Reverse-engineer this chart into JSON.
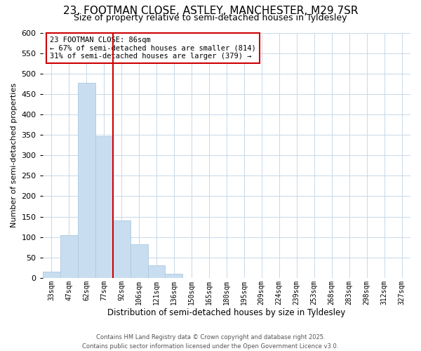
{
  "title": "23, FOOTMAN CLOSE, ASTLEY, MANCHESTER, M29 7SR",
  "subtitle": "Size of property relative to semi-detached houses in Tyldesley",
  "xlabel": "Distribution of semi-detached houses by size in Tyldesley",
  "ylabel": "Number of semi-detached properties",
  "categories": [
    "33sqm",
    "47sqm",
    "62sqm",
    "77sqm",
    "92sqm",
    "106sqm",
    "121sqm",
    "136sqm",
    "150sqm",
    "165sqm",
    "180sqm",
    "195sqm",
    "209sqm",
    "224sqm",
    "239sqm",
    "253sqm",
    "268sqm",
    "283sqm",
    "298sqm",
    "312sqm",
    "327sqm"
  ],
  "values": [
    15,
    105,
    478,
    346,
    140,
    83,
    30,
    10,
    0,
    0,
    0,
    0,
    0,
    0,
    0,
    0,
    0,
    0,
    0,
    0,
    0
  ],
  "bar_color": "#c8ddf0",
  "bar_edge_color": "#adc8e0",
  "vline_x": 3.5,
  "vline_color": "#cc0000",
  "annotation_title": "23 FOOTMAN CLOSE: 86sqm",
  "annotation_line1": "← 67% of semi-detached houses are smaller (814)",
  "annotation_line2": "31% of semi-detached houses are larger (379) →",
  "annotation_box_color": "#ffffff",
  "annotation_box_edge_color": "#cc0000",
  "ylim": [
    0,
    600
  ],
  "yticks": [
    0,
    50,
    100,
    150,
    200,
    250,
    300,
    350,
    400,
    450,
    500,
    550,
    600
  ],
  "footer_line1": "Contains HM Land Registry data © Crown copyright and database right 2025.",
  "footer_line2": "Contains public sector information licensed under the Open Government Licence v3.0.",
  "title_fontsize": 11,
  "subtitle_fontsize": 9,
  "background_color": "#ffffff",
  "grid_color": "#c8d8e8"
}
